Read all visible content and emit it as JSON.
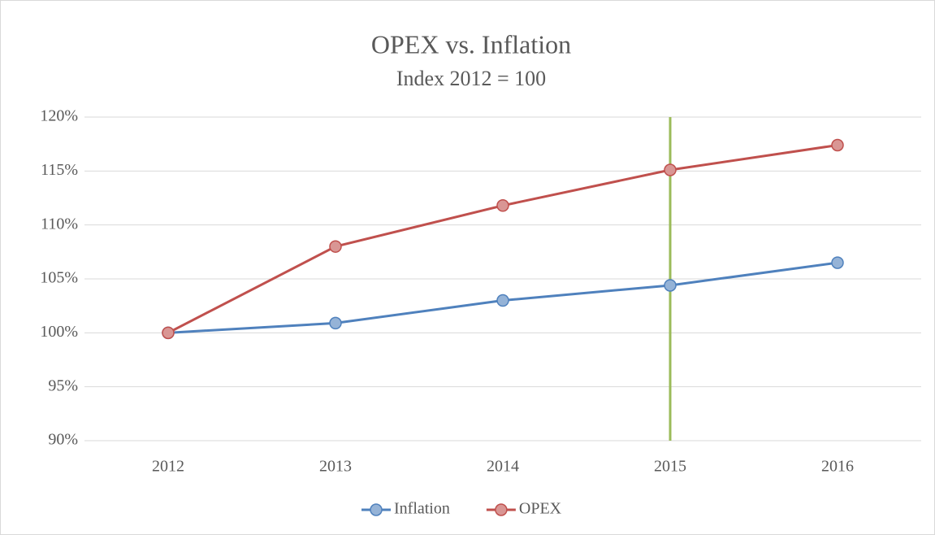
{
  "chart_data": {
    "type": "line",
    "title": "OPEX vs. Inflation",
    "subtitle": "Index 2012 = 100",
    "categories": [
      "2012",
      "2013",
      "2014",
      "2015",
      "2016"
    ],
    "series": [
      {
        "name": "Inflation",
        "color": "#4f81bd",
        "marker_color": "#95b3d7",
        "values": [
          100,
          100.9,
          103.0,
          104.4,
          106.5
        ]
      },
      {
        "name": "OPEX",
        "color": "#c0504d",
        "marker_color": "#d99694",
        "values": [
          100,
          108.0,
          111.8,
          115.1,
          117.4
        ]
      }
    ],
    "ylim": [
      90,
      120
    ],
    "yticks": [
      {
        "value": 90,
        "label": "90%"
      },
      {
        "value": 95,
        "label": "95%"
      },
      {
        "value": 100,
        "label": "100%"
      },
      {
        "value": 105,
        "label": "105%"
      },
      {
        "value": 110,
        "label": "110%"
      },
      {
        "value": 115,
        "label": "115%"
      },
      {
        "value": 120,
        "label": "120%"
      }
    ],
    "grid": true,
    "legend": "bottom",
    "reference_line": {
      "x": "2015",
      "color": "#9bbb59"
    }
  }
}
